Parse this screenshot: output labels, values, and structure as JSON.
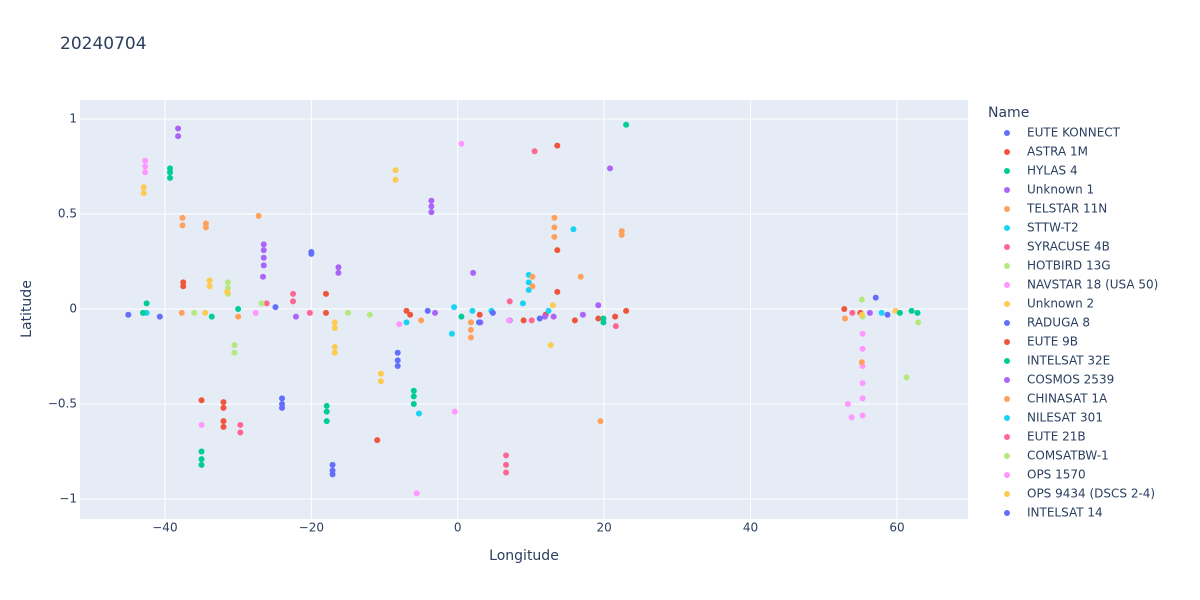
{
  "chart_data": {
    "type": "scatter",
    "title": "20240704",
    "x_label": "Longitude",
    "y_label": "Latitude",
    "legend_title": "Name",
    "xlim": [
      -51.6,
      69.7
    ],
    "ylim": [
      -1.105,
      1.1
    ],
    "xticks": [
      {
        "value": -40,
        "label": "−40"
      },
      {
        "value": -20,
        "label": "−20"
      },
      0,
      20,
      40,
      60
    ],
    "yticks": [
      {
        "value": -1,
        "label": "−1"
      },
      {
        "value": -0.5,
        "label": "−0.5"
      },
      0,
      0.5,
      1
    ],
    "grid": true,
    "legend_position": "right",
    "series": [
      {
        "name": "EUTE KONNECT",
        "color": "#636efa",
        "x": [
          -45,
          -24,
          -24,
          -24,
          57.1
        ],
        "y": [
          -0.03,
          -0.47,
          -0.5,
          -0.52,
          0.06
        ]
      },
      {
        "name": "ASTRA 1M",
        "color": "#EF553B",
        "x": [
          -37.5,
          -37.5,
          -32,
          -32,
          -32,
          -32,
          -18,
          -7,
          13.6,
          13.6,
          19.2,
          52.8,
          3
        ],
        "y": [
          0.12,
          0.14,
          -0.49,
          -0.52,
          -0.59,
          -0.62,
          0.08,
          -0.01,
          0.86,
          0.31,
          -0.05,
          0.0,
          -0.03
        ]
      },
      {
        "name": "HYLAS 4",
        "color": "#00cc96",
        "x": [
          -39.3,
          -39.3,
          -39.3,
          -35,
          -35,
          -35,
          -17.9,
          -17.9,
          -17.9,
          0.5,
          23,
          62
        ],
        "y": [
          0.69,
          0.72,
          0.74,
          -0.75,
          -0.79,
          -0.82,
          -0.51,
          -0.54,
          -0.59,
          -0.04,
          0.97,
          -0.01
        ]
      },
      {
        "name": "Unknown 1",
        "color": "#ab63fa",
        "x": [
          -38.2,
          -38.2,
          -26.5,
          -26.5,
          -26.6,
          -3.6,
          -3.6,
          -3.6,
          3.1,
          13.1,
          20.8
        ],
        "y": [
          0.91,
          0.95,
          0.23,
          0.27,
          0.17,
          0.51,
          0.54,
          0.57,
          -0.07,
          -0.04,
          0.74
        ]
      },
      {
        "name": "TELSTAR 11N",
        "color": "#FFA15A",
        "x": [
          -37.6,
          -37.6,
          -27.2,
          -5,
          1.8,
          1.8,
          1.8,
          13.2,
          13.2,
          13.2,
          19.5,
          52.9
        ],
        "y": [
          0.44,
          0.48,
          0.49,
          -0.06,
          -0.07,
          -0.11,
          -0.15,
          0.38,
          0.43,
          0.48,
          -0.59,
          -0.05
        ]
      },
      {
        "name": "STTW-T2",
        "color": "#19d3f3",
        "x": [
          -42.5,
          -5.3,
          -0.5,
          4.6,
          9.7,
          9.7,
          9.7,
          57.9
        ],
        "y": [
          -0.02,
          -0.55,
          0.01,
          -0.01,
          0.1,
          0.14,
          0.18,
          -0.02
        ]
      },
      {
        "name": "SYRACUSE 4B",
        "color": "#FF6692",
        "x": [
          -29.7,
          -29.7,
          -22.5,
          -22.5,
          6.6,
          6.6,
          6.6,
          10.5,
          53.9
        ],
        "y": [
          -0.61,
          -0.65,
          0.04,
          0.08,
          -0.77,
          -0.82,
          -0.86,
          0.83,
          -0.02
        ]
      },
      {
        "name": "HOTBIRD 13G",
        "color": "#B6E880",
        "x": [
          -36,
          -31.4,
          -31.4,
          -31.4,
          -15,
          13,
          55.2,
          62.9
        ],
        "y": [
          -0.02,
          0.08,
          0.11,
          0.14,
          -0.02,
          0.02,
          0.05,
          -0.07
        ]
      },
      {
        "name": "NAVSTAR 18 (USA 50)",
        "color": "#FF97FF",
        "x": [
          -42.7,
          -42.7,
          -42.7,
          -27.6,
          -0.4,
          0.5,
          55.3,
          55.3,
          55.3,
          55.3
        ],
        "y": [
          0.72,
          0.75,
          0.78,
          -0.02,
          -0.54,
          0.87,
          -0.13,
          -0.21,
          -0.3,
          -0.39
        ]
      },
      {
        "name": "Unknown 2",
        "color": "#FECB52",
        "x": [
          -42.9,
          -42.9,
          -31.5,
          -16.8,
          -16.8,
          -8.5,
          -8.5,
          12.7,
          59.8
        ],
        "y": [
          0.61,
          0.64,
          0.09,
          -0.07,
          -0.1,
          0.68,
          0.73,
          -0.19,
          -0.01
        ]
      },
      {
        "name": "RADUGA 8",
        "color": "#636efa",
        "x": [
          -40.7,
          -20,
          -20,
          -8.2,
          -8.2,
          -8.2,
          2.9
        ],
        "y": [
          -0.04,
          0.29,
          0.3,
          -0.23,
          -0.27,
          -0.3,
          -0.07
        ]
      },
      {
        "name": "EUTE 9B",
        "color": "#EF553B",
        "x": [
          -35,
          -18,
          -11,
          -6.5,
          9,
          12,
          13.6,
          16,
          21.5,
          23,
          55
        ],
        "y": [
          -0.48,
          -0.02,
          -0.69,
          -0.03,
          -0.06,
          -0.03,
          0.09,
          -0.06,
          -0.04,
          -0.01,
          -0.02
        ]
      },
      {
        "name": "INTELSAT 32E",
        "color": "#00cc96",
        "x": [
          -42.5,
          -43,
          -33.6,
          -30,
          -6,
          -6,
          -6,
          19.9,
          19.9,
          60.4,
          62.8
        ],
        "y": [
          0.03,
          -0.02,
          -0.04,
          0.0,
          -0.43,
          -0.46,
          -0.5,
          -0.05,
          -0.07,
          -0.02,
          -0.02
        ]
      },
      {
        "name": "COSMOS 2539",
        "color": "#ab63fa",
        "x": [
          -26.5,
          -26.5,
          -22.1,
          -16.3,
          -16.3,
          -3.1,
          2.1,
          7.1,
          11.9,
          17.1,
          19.2,
          56.3
        ],
        "y": [
          0.31,
          0.34,
          -0.04,
          0.19,
          0.22,
          -0.02,
          0.19,
          -0.06,
          -0.04,
          -0.03,
          0.02,
          -0.02
        ]
      },
      {
        "name": "CHINASAT 1A",
        "color": "#FFA15A",
        "x": [
          -37.7,
          -34.4,
          -34.4,
          -30,
          10.2,
          10.2,
          16.8,
          22.4,
          22.4,
          55.2
        ],
        "y": [
          -0.02,
          0.43,
          0.45,
          -0.04,
          0.12,
          0.17,
          0.17,
          0.39,
          0.41,
          -0.28
        ]
      },
      {
        "name": "NILESAT 301",
        "color": "#19d3f3",
        "x": [
          -7,
          -0.8,
          2,
          8.9,
          15.8,
          12.4
        ],
        "y": [
          -0.07,
          -0.13,
          -0.01,
          0.03,
          0.42,
          -0.01
        ]
      },
      {
        "name": "EUTE 21B",
        "color": "#FF6692",
        "x": [
          -26.1,
          -20.2,
          7.1,
          10.1,
          21.6
        ],
        "y": [
          0.03,
          -0.02,
          0.04,
          -0.06,
          -0.09
        ]
      },
      {
        "name": "COMSATBW-1",
        "color": "#B6E880",
        "x": [
          -30.5,
          -30.5,
          -26.8,
          -12,
          61.3,
          55.3
        ],
        "y": [
          -0.19,
          -0.23,
          0.03,
          -0.03,
          -0.36,
          -0.04
        ]
      },
      {
        "name": "OPS 1570",
        "color": "#FF97FF",
        "x": [
          -35,
          -8,
          -5.6,
          7,
          55.3,
          55.3,
          53.3,
          53.8
        ],
        "y": [
          -0.61,
          -0.08,
          -0.97,
          -0.06,
          -0.47,
          -0.56,
          -0.5,
          -0.57
        ]
      },
      {
        "name": "OPS 9434 (DSCS 2-4)",
        "color": "#FECB52",
        "x": [
          -33.9,
          -33.9,
          -34.5,
          -16.8,
          -16.8,
          -10.5,
          -10.5,
          13,
          55.2
        ],
        "y": [
          0.12,
          0.15,
          -0.02,
          -0.2,
          -0.23,
          -0.34,
          -0.38,
          0.02,
          -0.03
        ]
      },
      {
        "name": "INTELSAT 14",
        "color": "#636efa",
        "x": [
          -24.9,
          -17.1,
          -17.1,
          -17.1,
          -4.1,
          4.8,
          58.7,
          11.2
        ],
        "y": [
          0.01,
          -0.82,
          -0.85,
          -0.87,
          -0.01,
          -0.02,
          -0.03,
          -0.05
        ]
      }
    ]
  }
}
